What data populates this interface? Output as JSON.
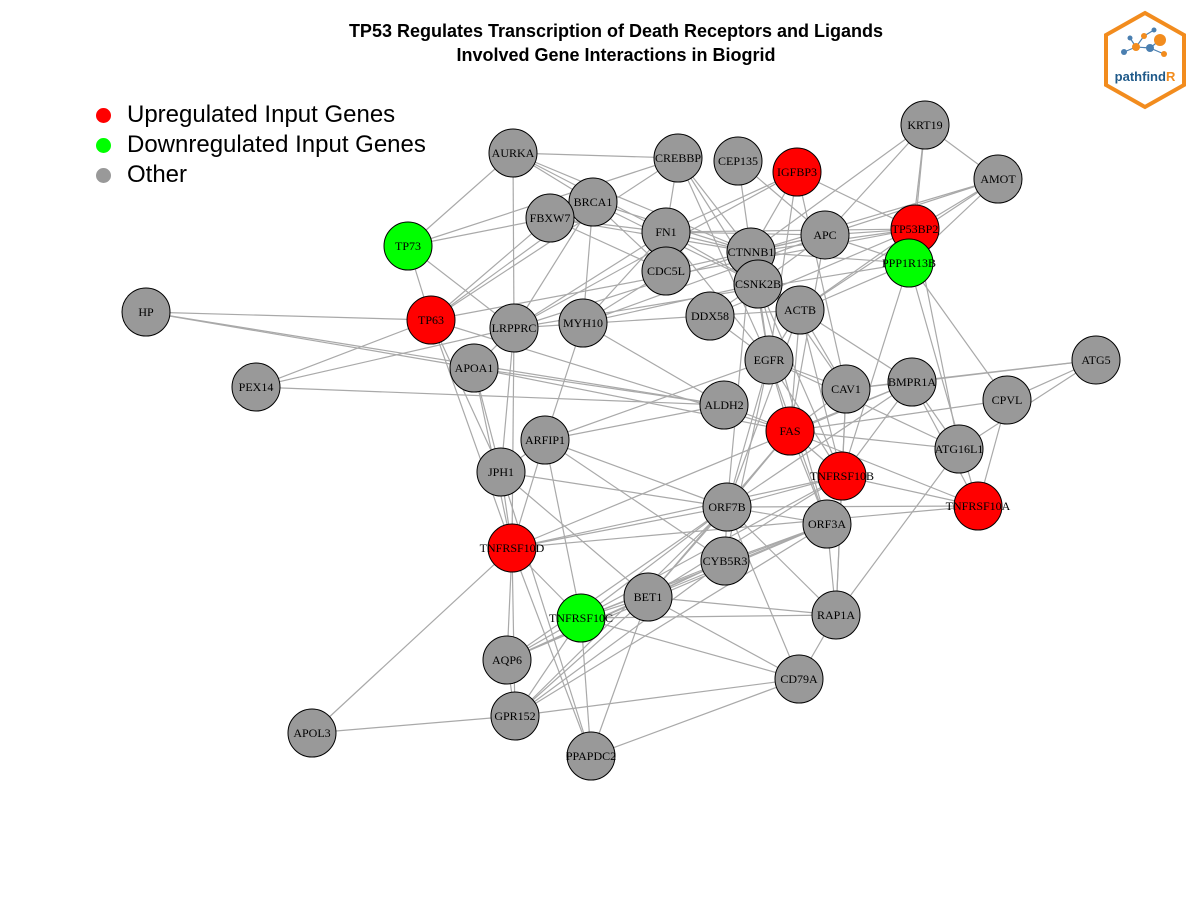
{
  "title": {
    "line1": "TP53 Regulates Transcription of Death Receptors and Ligands",
    "line2": "Involved Gene Interactions in Biogrid"
  },
  "legend": [
    {
      "label": "Upregulated Input Genes",
      "color": "#ff0000"
    },
    {
      "label": "Downregulated Input Genes",
      "color": "#00ff00"
    },
    {
      "label": "Other",
      "color": "#999999"
    }
  ],
  "logo": {
    "text_main": "pathfind",
    "text_accent": "R",
    "border_color": "#f28c1e"
  },
  "colors": {
    "up": "#ff0000",
    "down": "#00ff00",
    "other": "#999999",
    "edge": "#a9a9a9"
  },
  "nodes": [
    {
      "id": "AURKA",
      "type": "other"
    },
    {
      "id": "CREBBP",
      "type": "other"
    },
    {
      "id": "CEP135",
      "type": "other"
    },
    {
      "id": "IGFBP3",
      "type": "up"
    },
    {
      "id": "KRT19",
      "type": "other"
    },
    {
      "id": "AMOT",
      "type": "other"
    },
    {
      "id": "BRCA1",
      "type": "other"
    },
    {
      "id": "FBXW7",
      "type": "other"
    },
    {
      "id": "FN1",
      "type": "other"
    },
    {
      "id": "APC",
      "type": "other"
    },
    {
      "id": "TP53BP2",
      "type": "up"
    },
    {
      "id": "PPP1R13B",
      "type": "down"
    },
    {
      "id": "TP73",
      "type": "down"
    },
    {
      "id": "CTNNB1",
      "type": "other"
    },
    {
      "id": "CDC5L",
      "type": "other"
    },
    {
      "id": "CSNK2B",
      "type": "other"
    },
    {
      "id": "HP",
      "type": "other"
    },
    {
      "id": "TP63",
      "type": "up"
    },
    {
      "id": "LRPPRC",
      "type": "other"
    },
    {
      "id": "MYH10",
      "type": "other"
    },
    {
      "id": "DDX58",
      "type": "other"
    },
    {
      "id": "ACTB",
      "type": "other"
    },
    {
      "id": "ATG5",
      "type": "other"
    },
    {
      "id": "APOA1",
      "type": "other"
    },
    {
      "id": "EGFR",
      "type": "other"
    },
    {
      "id": "PEX14",
      "type": "other"
    },
    {
      "id": "CAV1",
      "type": "other"
    },
    {
      "id": "BMPR1A",
      "type": "other"
    },
    {
      "id": "ALDH2",
      "type": "other"
    },
    {
      "id": "CPVL",
      "type": "other"
    },
    {
      "id": "FAS",
      "type": "up"
    },
    {
      "id": "ARFIP1",
      "type": "other"
    },
    {
      "id": "ATG16L1",
      "type": "other"
    },
    {
      "id": "JPH1",
      "type": "other"
    },
    {
      "id": "TNFRSF10B",
      "type": "up"
    },
    {
      "id": "ORF7B",
      "type": "other"
    },
    {
      "id": "TNFRSF10A",
      "type": "up"
    },
    {
      "id": "ORF3A",
      "type": "other"
    },
    {
      "id": "TNFRSF10D",
      "type": "up"
    },
    {
      "id": "CYB5R3",
      "type": "other"
    },
    {
      "id": "BET1",
      "type": "other"
    },
    {
      "id": "RAP1A",
      "type": "other"
    },
    {
      "id": "TNFRSF10C",
      "type": "down"
    },
    {
      "id": "AQP6",
      "type": "other"
    },
    {
      "id": "CD79A",
      "type": "other"
    },
    {
      "id": "GPR152",
      "type": "other"
    },
    {
      "id": "APOL3",
      "type": "other"
    },
    {
      "id": "PPAPDC2",
      "type": "other"
    }
  ],
  "edges": [
    [
      "AURKA",
      "TP73"
    ],
    [
      "AURKA",
      "CREBBP"
    ],
    [
      "AURKA",
      "BRCA1"
    ],
    [
      "AURKA",
      "FN1"
    ],
    [
      "AURKA",
      "LRPPRC"
    ],
    [
      "AURKA",
      "CTNNB1"
    ],
    [
      "CREBBP",
      "TP73"
    ],
    [
      "CREBBP",
      "CTNNB1"
    ],
    [
      "CREBBP",
      "CSNK2B"
    ],
    [
      "CREBBP",
      "TP63"
    ],
    [
      "CREBBP",
      "EGFR"
    ],
    [
      "CREBBP",
      "FN1"
    ],
    [
      "CEP135",
      "CTNNB1"
    ],
    [
      "CEP135",
      "APC"
    ],
    [
      "IGFBP3",
      "CTNNB1"
    ],
    [
      "IGFBP3",
      "FN1"
    ],
    [
      "IGFBP3",
      "EGFR"
    ],
    [
      "IGFBP3",
      "CAV1"
    ],
    [
      "IGFBP3",
      "LRPPRC"
    ],
    [
      "IGFBP3",
      "TP53BP2"
    ],
    [
      "KRT19",
      "TP53BP2"
    ],
    [
      "KRT19",
      "PPP1R13B"
    ],
    [
      "KRT19",
      "APC"
    ],
    [
      "KRT19",
      "AMOT"
    ],
    [
      "KRT19",
      "CTNNB1"
    ],
    [
      "AMOT",
      "TP53BP2"
    ],
    [
      "AMOT",
      "PPP1R13B"
    ],
    [
      "AMOT",
      "APC"
    ],
    [
      "AMOT",
      "CTNNB1"
    ],
    [
      "AMOT",
      "ACTB"
    ],
    [
      "BRCA1",
      "FBXW7"
    ],
    [
      "BRCA1",
      "CTNNB1"
    ],
    [
      "BRCA1",
      "LRPPRC"
    ],
    [
      "BRCA1",
      "CDC5L"
    ],
    [
      "BRCA1",
      "TP63"
    ],
    [
      "BRCA1",
      "MYH10"
    ],
    [
      "BRCA1",
      "CSNK2B"
    ],
    [
      "FBXW7",
      "TP73"
    ],
    [
      "FBXW7",
      "TP63"
    ],
    [
      "FBXW7",
      "CTNNB1"
    ],
    [
      "FBXW7",
      "FN1"
    ],
    [
      "FBXW7",
      "CDC5L"
    ],
    [
      "FN1",
      "CTNNB1"
    ],
    [
      "FN1",
      "CDC5L"
    ],
    [
      "FN1",
      "CSNK2B"
    ],
    [
      "FN1",
      "EGFR"
    ],
    [
      "FN1",
      "LRPPRC"
    ],
    [
      "FN1",
      "MYH10"
    ],
    [
      "FN1",
      "APC"
    ],
    [
      "FN1",
      "TP53BP2"
    ],
    [
      "APC",
      "CTNNB1"
    ],
    [
      "APC",
      "TP53BP2"
    ],
    [
      "APC",
      "PPP1R13B"
    ],
    [
      "APC",
      "CSNK2B"
    ],
    [
      "APC",
      "FAS"
    ],
    [
      "APC",
      "MYH10"
    ],
    [
      "APC",
      "CDC5L"
    ],
    [
      "TP53BP2",
      "PPP1R13B"
    ],
    [
      "TP53BP2",
      "CTNNB1"
    ],
    [
      "TP53BP2",
      "TP63"
    ],
    [
      "TP53BP2",
      "ATG16L1"
    ],
    [
      "TP53BP2",
      "DDX58"
    ],
    [
      "TP53BP2",
      "ACTB"
    ],
    [
      "PPP1R13B",
      "CTNNB1"
    ],
    [
      "PPP1R13B",
      "TNFRSF10B"
    ],
    [
      "PPP1R13B",
      "TNFRSF10A"
    ],
    [
      "PPP1R13B",
      "CPVL"
    ],
    [
      "PPP1R13B",
      "LRPPRC"
    ],
    [
      "PPP1R13B",
      "ACTB"
    ],
    [
      "CTNNB1",
      "CSNK2B"
    ],
    [
      "CTNNB1",
      "EGFR"
    ],
    [
      "CTNNB1",
      "CAV1"
    ],
    [
      "CTNNB1",
      "ORF7B"
    ],
    [
      "CTNNB1",
      "LRPPRC"
    ],
    [
      "CSNK2B",
      "EGFR"
    ],
    [
      "CSNK2B",
      "DDX58"
    ],
    [
      "CSNK2B",
      "TNFRSF10B"
    ],
    [
      "CSNK2B",
      "ORF3A"
    ],
    [
      "CSNK2B",
      "MYH10"
    ],
    [
      "HP",
      "TP63"
    ],
    [
      "HP",
      "ALDH2"
    ],
    [
      "HP",
      "APOA1"
    ],
    [
      "TP63",
      "TP73"
    ],
    [
      "TP63",
      "PEX14"
    ],
    [
      "TP63",
      "TNFRSF10D"
    ],
    [
      "TP63",
      "JPH1"
    ],
    [
      "TP63",
      "FAS"
    ],
    [
      "LRPPRC",
      "TP73"
    ],
    [
      "LRPPRC",
      "APOA1"
    ],
    [
      "LRPPRC",
      "JPH1"
    ],
    [
      "LRPPRC",
      "TNFRSF10D"
    ],
    [
      "LRPPRC",
      "ACTB"
    ],
    [
      "MYH10",
      "ARFIP1"
    ],
    [
      "MYH10",
      "ALDH2"
    ],
    [
      "MYH10",
      "CDC5L"
    ],
    [
      "ACTB",
      "EGFR"
    ],
    [
      "ACTB",
      "CAV1"
    ],
    [
      "ACTB",
      "FAS"
    ],
    [
      "ACTB",
      "BMPR1A"
    ],
    [
      "ACTB",
      "TNFRSF10B"
    ],
    [
      "ACTB",
      "ORF7B"
    ],
    [
      "EGFR",
      "CAV1"
    ],
    [
      "EGFR",
      "FAS"
    ],
    [
      "EGFR",
      "TNFRSF10B"
    ],
    [
      "EGFR",
      "ORF7B"
    ],
    [
      "EGFR",
      "CYB5R3"
    ],
    [
      "EGFR",
      "ATG16L1"
    ],
    [
      "EGFR",
      "ORF3A"
    ],
    [
      "EGFR",
      "ARFIP1"
    ],
    [
      "EGFR",
      "DDX58"
    ],
    [
      "CAV1",
      "FAS"
    ],
    [
      "CAV1",
      "TNFRSF10B"
    ],
    [
      "CAV1",
      "BMPR1A"
    ],
    [
      "CAV1",
      "RAP1A"
    ],
    [
      "CAV1",
      "ATG5"
    ],
    [
      "BMPR1A",
      "FAS"
    ],
    [
      "BMPR1A",
      "TNFRSF10B"
    ],
    [
      "BMPR1A",
      "TNFRSF10A"
    ],
    [
      "BMPR1A",
      "TNFRSF10D"
    ],
    [
      "BMPR1A",
      "ATG16L1"
    ],
    [
      "BMPR1A",
      "ORF7B"
    ],
    [
      "ATG5",
      "ATG16L1"
    ],
    [
      "ATG5",
      "BMPR1A"
    ],
    [
      "ATG5",
      "CPVL"
    ],
    [
      "CPVL",
      "TNFRSF10A"
    ],
    [
      "CPVL",
      "FAS"
    ],
    [
      "ATG16L1",
      "RAP1A"
    ],
    [
      "ATG16L1",
      "FAS"
    ],
    [
      "FAS",
      "TNFRSF10B"
    ],
    [
      "FAS",
      "TNFRSF10A"
    ],
    [
      "FAS",
      "ORF7B"
    ],
    [
      "FAS",
      "ORF3A"
    ],
    [
      "FAS",
      "APOA1"
    ],
    [
      "FAS",
      "BET1"
    ],
    [
      "TNFRSF10B",
      "TNFRSF10A"
    ],
    [
      "TNFRSF10B",
      "ORF7B"
    ],
    [
      "TNFRSF10B",
      "TNFRSF10D"
    ],
    [
      "TNFRSF10B",
      "RAP1A"
    ],
    [
      "TNFRSF10B",
      "BET1"
    ],
    [
      "TNFRSF10B",
      "TNFRSF10C"
    ],
    [
      "TNFRSF10A",
      "ORF7B"
    ],
    [
      "TNFRSF10A",
      "TNFRSF10D"
    ],
    [
      "PEX14",
      "ALDH2"
    ],
    [
      "PEX14",
      "LRPPRC"
    ],
    [
      "APOA1",
      "ALDH2"
    ],
    [
      "APOA1",
      "TNFRSF10D"
    ],
    [
      "APOA1",
      "JPH1"
    ],
    [
      "ALDH2",
      "ARFIP1"
    ],
    [
      "ALDH2",
      "FAS"
    ],
    [
      "ARFIP1",
      "JPH1"
    ],
    [
      "ARFIP1",
      "TNFRSF10D"
    ],
    [
      "ARFIP1",
      "ORF7B"
    ],
    [
      "ARFIP1",
      "CYB5R3"
    ],
    [
      "ARFIP1",
      "TNFRSF10C"
    ],
    [
      "JPH1",
      "ORF7B"
    ],
    [
      "JPH1",
      "BET1"
    ],
    [
      "JPH1",
      "TNFRSF10D"
    ],
    [
      "JPH1",
      "PPAPDC2"
    ],
    [
      "ORF7B",
      "ORF3A"
    ],
    [
      "ORF7B",
      "CYB5R3"
    ],
    [
      "ORF7B",
      "BET1"
    ],
    [
      "ORF7B",
      "RAP1A"
    ],
    [
      "ORF7B",
      "TNFRSF10D"
    ],
    [
      "ORF7B",
      "TNFRSF10C"
    ],
    [
      "ORF7B",
      "AQP6"
    ],
    [
      "ORF7B",
      "GPR152"
    ],
    [
      "ORF7B",
      "CD79A"
    ],
    [
      "ORF3A",
      "CYB5R3"
    ],
    [
      "ORF3A",
      "BET1"
    ],
    [
      "ORF3A",
      "RAP1A"
    ],
    [
      "ORF3A",
      "TNFRSF10C"
    ],
    [
      "ORF3A",
      "AQP6"
    ],
    [
      "ORF3A",
      "GPR152"
    ],
    [
      "CYB5R3",
      "BET1"
    ],
    [
      "CYB5R3",
      "TNFRSF10C"
    ],
    [
      "CYB5R3",
      "AQP6"
    ],
    [
      "CYB5R3",
      "GPR152"
    ],
    [
      "BET1",
      "TNFRSF10C"
    ],
    [
      "BET1",
      "RAP1A"
    ],
    [
      "BET1",
      "CD79A"
    ],
    [
      "BET1",
      "GPR152"
    ],
    [
      "BET1",
      "AQP6"
    ],
    [
      "BET1",
      "PPAPDC2"
    ],
    [
      "RAP1A",
      "CD79A"
    ],
    [
      "RAP1A",
      "TNFRSF10C"
    ],
    [
      "TNFRSF10D",
      "TNFRSF10C"
    ],
    [
      "TNFRSF10D",
      "AQP6"
    ],
    [
      "TNFRSF10D",
      "GPR152"
    ],
    [
      "TNFRSF10D",
      "APOL3"
    ],
    [
      "TNFRSF10C",
      "AQP6"
    ],
    [
      "TNFRSF10C",
      "GPR152"
    ],
    [
      "TNFRSF10C",
      "CD79A"
    ],
    [
      "TNFRSF10C",
      "PPAPDC2"
    ],
    [
      "AQP6",
      "GPR152"
    ],
    [
      "GPR152",
      "APOL3"
    ],
    [
      "GPR152",
      "CD79A"
    ],
    [
      "PPAPDC2",
      "CD79A"
    ],
    [
      "PPAPDC2",
      "TNFRSF10D"
    ]
  ]
}
